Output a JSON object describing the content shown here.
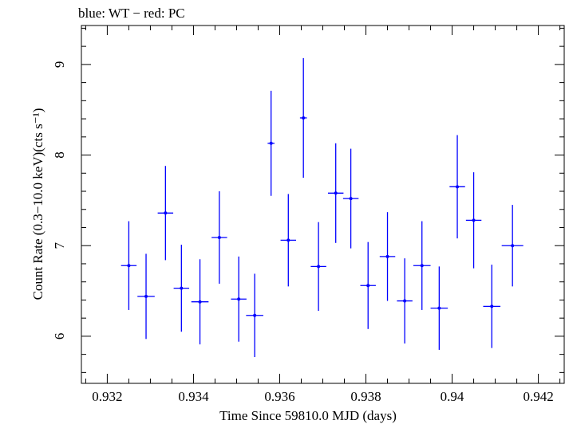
{
  "chart_data": {
    "type": "scatter",
    "title": "blue: WT − red: PC",
    "xlabel": "Time Since 59810.0 MJD (days)",
    "ylabel": "Count Rate (0.3−10.0 keV)(cts s⁻¹)",
    "xlim": [
      0.9314,
      0.9426
    ],
    "ylim": [
      5.48,
      9.43
    ],
    "x_ticks": [
      0.932,
      0.934,
      0.936,
      0.938,
      0.94,
      0.942
    ],
    "x_tick_labels": [
      "0.932",
      "0.934",
      "0.936",
      "0.938",
      "0.94",
      "0.942"
    ],
    "y_ticks": [
      6,
      7,
      8,
      9
    ],
    "y_tick_labels": [
      "6",
      "7",
      "8",
      "9"
    ],
    "grid": false,
    "series": [
      {
        "name": "WT",
        "color": "#0000ff",
        "points": [
          {
            "x": 0.9325,
            "y": 6.78,
            "xerr": 0.00018,
            "yerr": 0.49
          },
          {
            "x": 0.9329,
            "y": 6.44,
            "xerr": 0.0002,
            "yerr": 0.47
          },
          {
            "x": 0.93335,
            "y": 7.36,
            "xerr": 0.00018,
            "yerr": 0.52
          },
          {
            "x": 0.93372,
            "y": 6.53,
            "xerr": 0.00018,
            "yerr": 0.48
          },
          {
            "x": 0.93415,
            "y": 6.38,
            "xerr": 0.0002,
            "yerr": 0.47
          },
          {
            "x": 0.9346,
            "y": 7.09,
            "xerr": 0.00018,
            "yerr": 0.51
          },
          {
            "x": 0.93505,
            "y": 6.41,
            "xerr": 0.00018,
            "yerr": 0.47
          },
          {
            "x": 0.93542,
            "y": 6.23,
            "xerr": 0.0002,
            "yerr": 0.46
          },
          {
            "x": 0.9358,
            "y": 8.13,
            "xerr": 8e-05,
            "yerr": 0.58
          },
          {
            "x": 0.9362,
            "y": 7.06,
            "xerr": 0.00018,
            "yerr": 0.51
          },
          {
            "x": 0.93655,
            "y": 8.41,
            "xerr": 8e-05,
            "yerr": 0.66
          },
          {
            "x": 0.9369,
            "y": 6.77,
            "xerr": 0.00018,
            "yerr": 0.49
          },
          {
            "x": 0.9373,
            "y": 7.58,
            "xerr": 0.00018,
            "yerr": 0.55
          },
          {
            "x": 0.93765,
            "y": 7.52,
            "xerr": 0.00018,
            "yerr": 0.55
          },
          {
            "x": 0.93805,
            "y": 6.56,
            "xerr": 0.00018,
            "yerr": 0.48
          },
          {
            "x": 0.9385,
            "y": 6.88,
            "xerr": 0.00018,
            "yerr": 0.49
          },
          {
            "x": 0.9389,
            "y": 6.39,
            "xerr": 0.00018,
            "yerr": 0.47
          },
          {
            "x": 0.9393,
            "y": 6.78,
            "xerr": 0.0002,
            "yerr": 0.49
          },
          {
            "x": 0.9397,
            "y": 6.31,
            "xerr": 0.0002,
            "yerr": 0.46
          },
          {
            "x": 0.94012,
            "y": 7.65,
            "xerr": 0.00018,
            "yerr": 0.57
          },
          {
            "x": 0.9405,
            "y": 7.28,
            "xerr": 0.00018,
            "yerr": 0.53
          },
          {
            "x": 0.94092,
            "y": 6.33,
            "xerr": 0.0002,
            "yerr": 0.46
          },
          {
            "x": 0.9414,
            "y": 7.0,
            "xerr": 0.00025,
            "yerr": 0.45
          }
        ]
      }
    ]
  }
}
